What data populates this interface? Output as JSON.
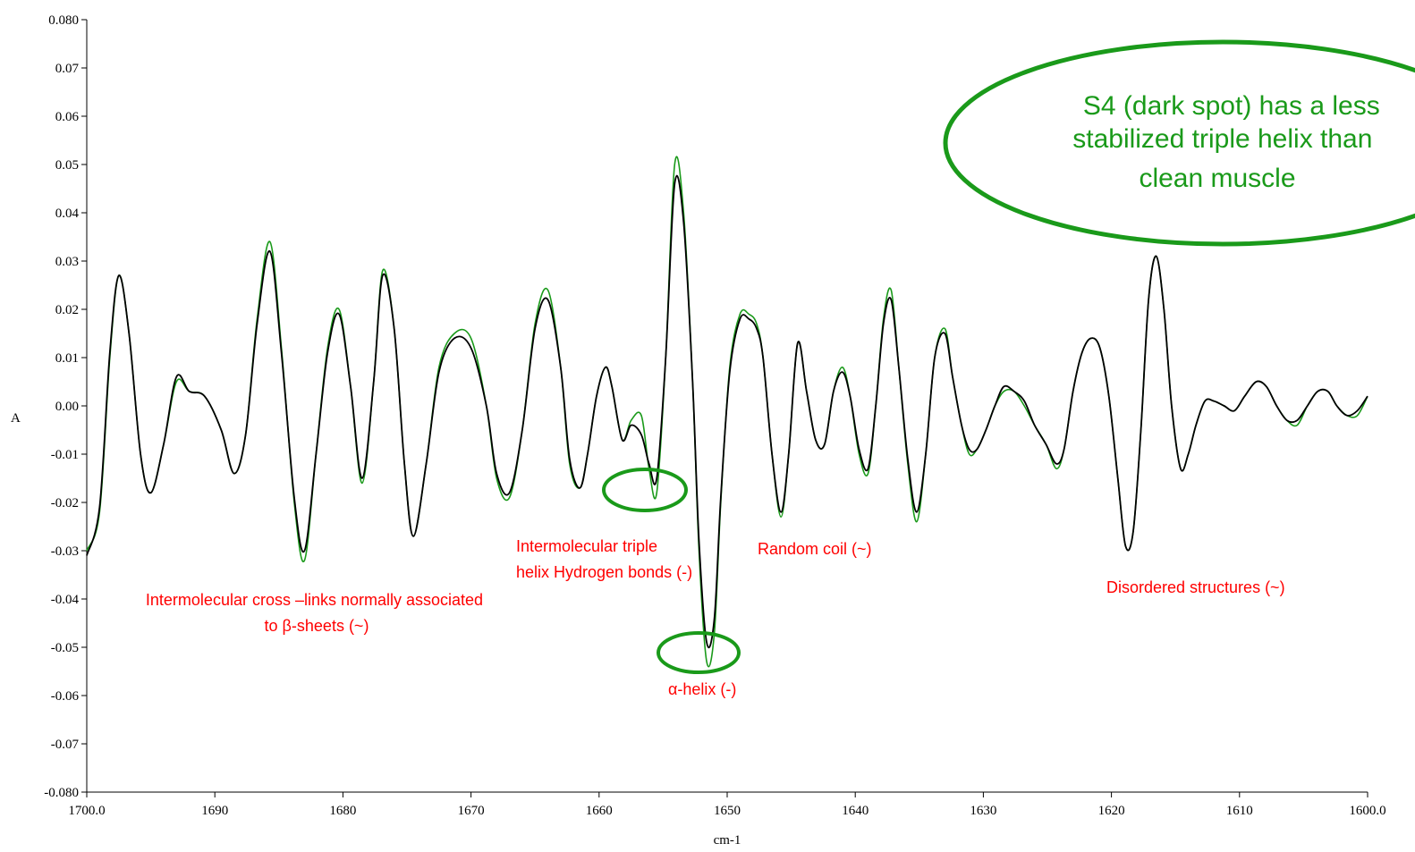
{
  "chart_data": {
    "type": "line",
    "title": "",
    "xlabel": "cm-1",
    "ylabel": "A",
    "xlim": [
      1700,
      1600
    ],
    "ylim": [
      -0.08,
      0.08
    ],
    "reversed_x": true,
    "grid": false,
    "x_ticks": [
      1700,
      1690,
      1680,
      1670,
      1660,
      1650,
      1640,
      1630,
      1620,
      1610,
      1600
    ],
    "x_tick_labels": [
      "1700.0",
      "1690",
      "1680",
      "1670",
      "1660",
      "1650",
      "1640",
      "1630",
      "1620",
      "1610",
      "1600.0"
    ],
    "y_ticks": [
      0.08,
      0.07,
      0.06,
      0.05,
      0.04,
      0.03,
      0.02,
      0.01,
      0.0,
      -0.01,
      -0.02,
      -0.03,
      -0.04,
      -0.05,
      -0.06,
      -0.07,
      -0.08
    ],
    "y_tick_labels": [
      "0.080",
      "0.07",
      "0.06",
      "0.05",
      "0.04",
      "0.03",
      "0.02",
      "0.01",
      "0.00",
      "-0.01",
      "-0.02",
      "-0.03",
      "-0.04",
      "-0.05",
      "-0.06",
      "-0.07",
      "-0.080"
    ],
    "series": [
      {
        "color": "#1a9a1a",
        "x": [
          1700.0,
          1699.0,
          1698.2,
          1697.5,
          1696.7,
          1695.8,
          1695.0,
          1694.0,
          1693.0,
          1692.0,
          1690.8,
          1689.5,
          1688.5,
          1687.6,
          1686.7,
          1685.7,
          1684.8,
          1683.8,
          1683.0,
          1682.1,
          1681.2,
          1680.3,
          1679.4,
          1678.5,
          1677.6,
          1676.9,
          1676.0,
          1675.2,
          1674.5,
          1673.5,
          1672.5,
          1671.3,
          1670.0,
          1668.8,
          1668.0,
          1667.0,
          1666.0,
          1665.0,
          1664.0,
          1663.0,
          1662.3,
          1661.5,
          1660.9,
          1660.2,
          1659.5,
          1659.0,
          1658.2,
          1657.5,
          1656.7,
          1656.1,
          1655.5,
          1654.8,
          1654.1,
          1653.4,
          1652.7,
          1652.2,
          1651.6,
          1651.0,
          1650.5,
          1649.8,
          1649.0,
          1648.3,
          1647.7,
          1647.2,
          1646.5,
          1645.8,
          1645.2,
          1644.5,
          1643.8,
          1643.1,
          1642.4,
          1641.7,
          1641.0,
          1640.4,
          1639.7,
          1639.0,
          1638.4,
          1637.8,
          1637.2,
          1636.6,
          1635.9,
          1635.2,
          1634.5,
          1633.8,
          1633.0,
          1632.4,
          1631.7,
          1631.1,
          1630.5,
          1629.8,
          1629.1,
          1628.4,
          1627.6,
          1626.8,
          1626.0,
          1625.1,
          1624.3,
          1623.7,
          1623.0,
          1622.3,
          1621.6,
          1620.9,
          1620.2,
          1619.5,
          1618.9,
          1618.3,
          1617.7,
          1617.1,
          1616.5,
          1615.9,
          1615.3,
          1614.6,
          1614.0,
          1613.4,
          1612.7,
          1612.0,
          1611.2,
          1610.4,
          1609.6,
          1608.7,
          1607.9,
          1607.1,
          1606.3,
          1605.5,
          1604.7,
          1603.9,
          1603.1,
          1602.4,
          1601.6,
          1600.8,
          1600.0
        ],
        "y": [
          -0.03,
          -0.022,
          0.01,
          0.027,
          0.015,
          -0.01,
          -0.018,
          -0.008,
          0.005,
          0.003,
          0.002,
          -0.005,
          -0.014,
          -0.006,
          0.018,
          0.034,
          0.012,
          -0.02,
          -0.032,
          -0.01,
          0.012,
          0.02,
          0.004,
          -0.016,
          0.005,
          0.028,
          0.016,
          -0.012,
          -0.027,
          -0.012,
          0.008,
          0.015,
          0.014,
          0.0,
          -0.015,
          -0.019,
          -0.005,
          0.017,
          0.024,
          0.008,
          -0.012,
          -0.017,
          -0.01,
          0.002,
          0.008,
          0.004,
          -0.007,
          -0.003,
          -0.002,
          -0.013,
          -0.018,
          0.01,
          0.05,
          0.04,
          0.005,
          -0.03,
          -0.053,
          -0.047,
          -0.02,
          0.008,
          0.019,
          0.019,
          0.017,
          0.01,
          -0.01,
          -0.023,
          -0.01,
          0.013,
          0.003,
          -0.007,
          -0.008,
          0.003,
          0.008,
          0.002,
          -0.01,
          -0.014,
          0.0,
          0.018,
          0.024,
          0.008,
          -0.012,
          -0.024,
          -0.01,
          0.01,
          0.016,
          0.006,
          -0.004,
          -0.01,
          -0.009,
          -0.005,
          0.0,
          0.003,
          0.003,
          0.0,
          -0.004,
          -0.008,
          -0.013,
          -0.009,
          0.003,
          0.011,
          0.014,
          0.012,
          0.002,
          -0.015,
          -0.029,
          -0.026,
          -0.005,
          0.022,
          0.031,
          0.02,
          0.0,
          -0.013,
          -0.01,
          -0.004,
          0.001,
          0.001,
          0.0,
          -0.001,
          0.002,
          0.005,
          0.004,
          0.0,
          -0.003,
          -0.004,
          0.0,
          0.003,
          0.003,
          0.0,
          -0.002,
          -0.002,
          0.002
        ]
      },
      {
        "color": "#000000",
        "x": [
          1700.0,
          1699.0,
          1698.2,
          1697.5,
          1696.7,
          1695.8,
          1695.0,
          1694.0,
          1693.0,
          1692.0,
          1690.8,
          1689.5,
          1688.5,
          1687.6,
          1686.7,
          1685.7,
          1684.8,
          1683.8,
          1683.0,
          1682.1,
          1681.2,
          1680.3,
          1679.4,
          1678.5,
          1677.6,
          1676.9,
          1676.0,
          1675.2,
          1674.5,
          1673.5,
          1672.5,
          1671.3,
          1670.0,
          1668.8,
          1668.0,
          1667.0,
          1666.0,
          1665.0,
          1664.0,
          1663.0,
          1662.3,
          1661.5,
          1660.9,
          1660.2,
          1659.5,
          1659.0,
          1658.2,
          1657.5,
          1656.7,
          1656.1,
          1655.5,
          1654.8,
          1654.1,
          1653.4,
          1652.7,
          1652.2,
          1651.6,
          1651.0,
          1650.5,
          1649.8,
          1649.0,
          1648.3,
          1647.7,
          1647.2,
          1646.5,
          1645.8,
          1645.2,
          1644.5,
          1643.8,
          1643.1,
          1642.4,
          1641.7,
          1641.0,
          1640.4,
          1639.7,
          1639.0,
          1638.4,
          1637.8,
          1637.2,
          1636.6,
          1635.9,
          1635.2,
          1634.5,
          1633.8,
          1633.0,
          1632.4,
          1631.7,
          1631.1,
          1630.5,
          1629.8,
          1629.1,
          1628.4,
          1627.6,
          1626.8,
          1626.0,
          1625.1,
          1624.3,
          1623.7,
          1623.0,
          1622.3,
          1621.6,
          1620.9,
          1620.2,
          1619.5,
          1618.9,
          1618.3,
          1617.7,
          1617.1,
          1616.5,
          1615.9,
          1615.3,
          1614.6,
          1614.0,
          1613.4,
          1612.7,
          1612.0,
          1611.2,
          1610.4,
          1609.6,
          1608.7,
          1607.9,
          1607.1,
          1606.3,
          1605.5,
          1604.7,
          1603.9,
          1603.1,
          1602.4,
          1601.6,
          1600.8,
          1600.0
        ],
        "y": [
          -0.031,
          -0.021,
          0.011,
          0.027,
          0.015,
          -0.01,
          -0.018,
          -0.008,
          0.006,
          0.003,
          0.002,
          -0.005,
          -0.014,
          -0.006,
          0.017,
          0.032,
          0.011,
          -0.019,
          -0.03,
          -0.01,
          0.011,
          0.019,
          0.004,
          -0.015,
          0.005,
          0.027,
          0.016,
          -0.012,
          -0.027,
          -0.012,
          0.007,
          0.014,
          0.012,
          0.0,
          -0.014,
          -0.018,
          -0.005,
          0.016,
          0.022,
          0.008,
          -0.011,
          -0.017,
          -0.01,
          0.002,
          0.008,
          0.004,
          -0.007,
          -0.004,
          -0.006,
          -0.012,
          -0.015,
          0.01,
          0.046,
          0.038,
          0.005,
          -0.028,
          -0.049,
          -0.044,
          -0.019,
          0.007,
          0.018,
          0.018,
          0.016,
          0.01,
          -0.01,
          -0.022,
          -0.01,
          0.013,
          0.003,
          -0.007,
          -0.008,
          0.003,
          0.007,
          0.002,
          -0.009,
          -0.013,
          0.0,
          0.017,
          0.022,
          0.008,
          -0.011,
          -0.022,
          -0.01,
          0.01,
          0.015,
          0.006,
          -0.004,
          -0.009,
          -0.009,
          -0.005,
          0.0,
          0.004,
          0.003,
          0.001,
          -0.004,
          -0.008,
          -0.012,
          -0.009,
          0.003,
          0.011,
          0.014,
          0.012,
          0.002,
          -0.015,
          -0.029,
          -0.026,
          -0.005,
          0.022,
          0.031,
          0.02,
          0.0,
          -0.013,
          -0.01,
          -0.004,
          0.001,
          0.001,
          0.0,
          -0.001,
          0.002,
          0.005,
          0.004,
          0.0,
          -0.003,
          -0.003,
          0.0,
          0.003,
          0.003,
          0.0,
          -0.002,
          -0.001,
          0.002
        ]
      }
    ],
    "annotations": [
      {
        "id": "cross-links",
        "color": "#ff0000",
        "lines": [
          "Intermolecular cross –links normally associated",
          "to β-sheets (~)"
        ]
      },
      {
        "id": "triple-helix",
        "color": "#ff0000",
        "lines": [
          "Intermolecular triple",
          "helix  Hydrogen bonds (-)"
        ]
      },
      {
        "id": "random-coil",
        "color": "#ff0000",
        "lines": [
          "Random coil (~)"
        ]
      },
      {
        "id": "alpha-helix",
        "color": "#ff0000",
        "lines": [
          "α-helix (-)"
        ]
      },
      {
        "id": "disordered",
        "color": "#ff0000",
        "lines": [
          "Disordered structures (~)"
        ]
      }
    ],
    "callout": {
      "color": "#1a9a1a",
      "lines": [
        "S4 (dark spot) has a less",
        "stabilized triple helix than",
        "clean muscle"
      ]
    },
    "highlight_color": "#1a9a1a"
  }
}
